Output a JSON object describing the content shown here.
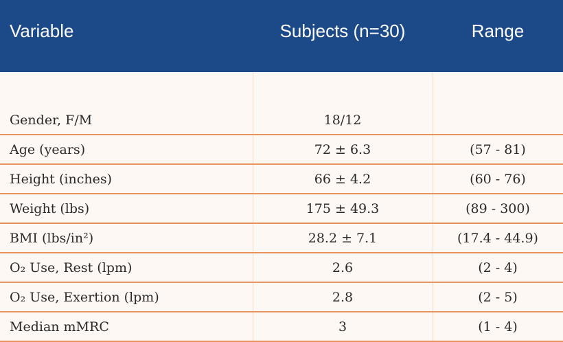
{
  "table": {
    "header": [
      "Variable",
      "Subjects (n=30)",
      "Range"
    ],
    "rows": [
      [
        "Gender, F/M",
        "18/12"
      ],
      [
        "Age (years)",
        "72 ± 6.3",
        "(57 - 81)"
      ],
      [
        "Height (inches)",
        "66 ± 4.2",
        "(60 - 76)"
      ],
      [
        "Weight (lbs)",
        "175 ± 49.3",
        "(89 - 300)"
      ],
      [
        "BMI (lbs/in²)",
        "28.2 ± 7.1",
        "(17.4 - 44.9)"
      ],
      [
        "O₂ Use, Rest (lpm)",
        "2.6",
        "(2 - 4)"
      ],
      [
        "O₂ Use, Exertion (lpm)",
        "2.8",
        "(2 - 5)"
      ],
      [
        "Median mMRC",
        "3",
        "(1 - 4)"
      ]
    ]
  }
}
